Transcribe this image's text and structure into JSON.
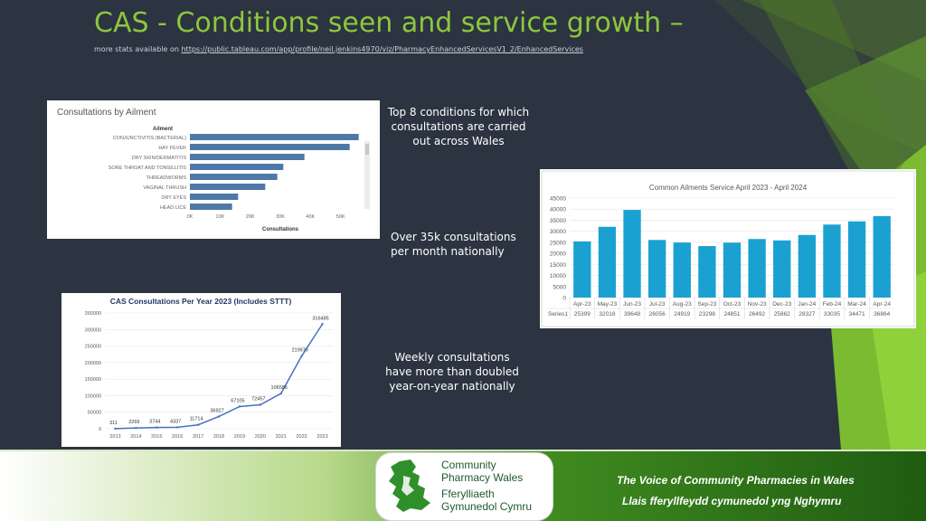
{
  "header": {
    "title": "CAS - Conditions seen and service growth –",
    "subtitle_prefix": "more stats available on ",
    "subtitle_link": "https://public.tableau.com/app/profile/neil.jenkins4970/viz/PharmacyEnhancedServicesV1_2/EnhancedServices"
  },
  "captions": {
    "top8": "Top 8 conditions for which consultations are carried out across Wales",
    "monthly": "Over 35k consultations per month nationally",
    "weekly": "Weekly consultations have more than doubled year-on-year nationally"
  },
  "chart_data": [
    {
      "type": "bar",
      "orientation": "horizontal",
      "title": "Consultations by Ailment",
      "ylabel": "Ailment",
      "xlabel": "Consultations",
      "categories": [
        "CONJUNCTIVITIS (BACTERIAL)",
        "HAY FEVER",
        "DRY SKIN/DERMATITIS",
        "SORE THROAT AND TONSILLITIS",
        "THREADWORMS",
        "VAGINAL THRUSH",
        "DRY EYES",
        "HEAD LICE"
      ],
      "values": [
        56000,
        53000,
        38000,
        31000,
        29000,
        25000,
        16000,
        14000
      ],
      "xticks": [
        "0K",
        "10K",
        "20K",
        "30K",
        "40K",
        "50K"
      ],
      "xlim": [
        0,
        60000
      ],
      "bar_color": "#4e79a7"
    },
    {
      "type": "bar",
      "title": "Common Ailments Service April 2023 - April 2024",
      "categories": [
        "Apr-23",
        "May-23",
        "Jun-23",
        "Jul-23",
        "Aug-23",
        "Sep-23",
        "Oct-23",
        "Nov-23",
        "Dec-23",
        "Jan-24",
        "Feb-24",
        "Mar-24",
        "Apr-24"
      ],
      "series": [
        {
          "name": "Series1",
          "values": [
            25399,
            32018,
            39648,
            26056,
            24919,
            23298,
            24851,
            26492,
            25862,
            28327,
            33035,
            34471,
            36864
          ]
        }
      ],
      "yticks": [
        "0",
        "5000",
        "10000",
        "15000",
        "20000",
        "25000",
        "30000",
        "35000",
        "40000",
        "45000"
      ],
      "ylim": [
        0,
        45000
      ],
      "bar_color": "#1ba1d1"
    },
    {
      "type": "line",
      "title": "CAS Consultations Per Year 2023 (Includes STTT)",
      "x": [
        "2013",
        "2014",
        "2015",
        "2016",
        "2017",
        "2018",
        "2019",
        "2020",
        "2021",
        "2022",
        "2023"
      ],
      "values": [
        311,
        2269,
        3744,
        4337,
        11714,
        36927,
        67105,
        72457,
        106586,
        219976,
        316485
      ],
      "labels": [
        "311",
        "2269",
        "3744",
        "4337",
        "11714",
        "36927",
        "67105",
        "72457",
        "106586",
        "219976",
        "316485"
      ],
      "yticks": [
        "0",
        "50000",
        "100000",
        "150000",
        "200000",
        "250000",
        "300000",
        "350000"
      ],
      "ylim": [
        0,
        350000
      ],
      "line_color": "#4472c4"
    }
  ],
  "footer": {
    "logo_line1": "Community",
    "logo_line2": "Pharmacy Wales",
    "logo_line3": "Fferylliaeth",
    "logo_line4": "Gymunedol Cymru",
    "tagline_en": "The Voice of Community Pharmacies in Wales",
    "tagline_cy": "Llais fferyllfeydd cymunedol yng Nghymru"
  },
  "colors": {
    "background": "#2b3440",
    "accent_green": "#8ec63f",
    "title_green": "#8ec63f"
  }
}
